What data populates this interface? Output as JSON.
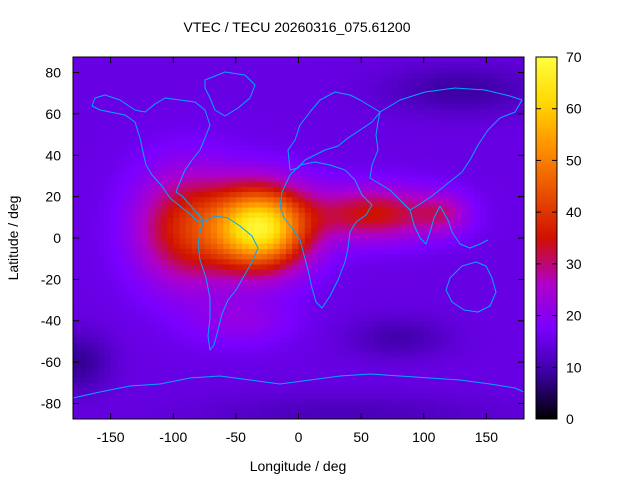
{
  "chart_data": {
    "type": "heatmap",
    "title": "VTEC / TECU 20260316_075.61200",
    "xlabel": "Longitude / deg",
    "ylabel": "Latitude / deg",
    "xlim": [
      -180,
      180
    ],
    "ylim": [
      -87.5,
      87.5
    ],
    "xticks": [
      -150,
      -100,
      -50,
      0,
      50,
      100,
      150
    ],
    "yticks": [
      -80,
      -60,
      -40,
      -20,
      0,
      20,
      40,
      60,
      80
    ],
    "colorbar": {
      "range": [
        0,
        70
      ],
      "ticks": [
        0,
        10,
        20,
        30,
        40,
        50,
        60,
        70
      ],
      "palette": "black-purple-red-orange-yellow",
      "stops": [
        "#000000",
        "#3a00a0",
        "#7a00ff",
        "#b000c8",
        "#d01000",
        "#e85000",
        "#ff9000",
        "#ffd800",
        "#ffff40"
      ]
    },
    "features": [
      {
        "name": "equatorial anomaly peak",
        "lon": -30,
        "lat": 5,
        "value": 68
      },
      {
        "name": "background mid-latitude",
        "value": 15
      },
      {
        "name": "polar minimum",
        "value": 8
      }
    ],
    "overlay": "coastlines",
    "overlay_color": "#00a8ff"
  }
}
